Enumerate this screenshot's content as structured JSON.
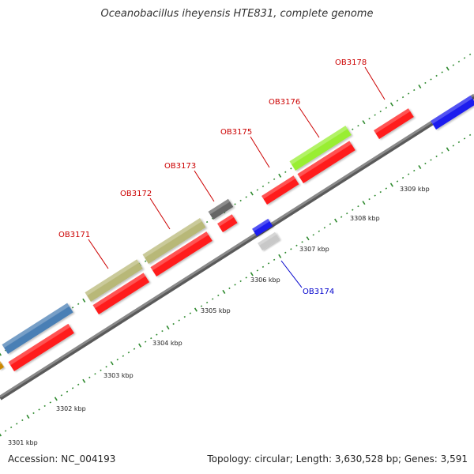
{
  "title": "Oceanobacillus iheyensis HTE831, complete genome",
  "footer": {
    "accession": "Accession: NC_004193",
    "summary": "Topology: circular; Length: 3,630,528 bp; Genes: 3,591"
  },
  "colors": {
    "tick": "#2f8a2f",
    "genome_line": "#8a8a8a",
    "label_forward": "#cc0000",
    "label_reverse": "#0000cc"
  },
  "axis_labels": [
    "3301 kbp",
    "3302 kbp",
    "3303 kbp",
    "3304 kbp",
    "3305 kbp",
    "3306 kbp",
    "3307 kbp",
    "3308 kbp",
    "3309 kbp"
  ],
  "gene_labels": [
    {
      "text": "OB3171",
      "strand": "forward"
    },
    {
      "text": "OB3172",
      "strand": "forward"
    },
    {
      "text": "OB3173",
      "strand": "forward"
    },
    {
      "text": "OB3175",
      "strand": "forward"
    },
    {
      "text": "OB3176",
      "strand": "forward"
    },
    {
      "text": "OB3178",
      "strand": "forward"
    },
    {
      "text": "OB3174",
      "strand": "reverse"
    }
  ],
  "genes": [
    {
      "color": "#ff1a1a",
      "strand": "forward"
    },
    {
      "color": "#ff1a1a",
      "strand": "forward"
    },
    {
      "color": "#ff1a1a",
      "strand": "forward"
    },
    {
      "color": "#ff1a1a",
      "strand": "forward"
    },
    {
      "color": "#ff1a1a",
      "strand": "forward"
    },
    {
      "color": "#ff1a1a",
      "strand": "forward"
    },
    {
      "color": "#ff1a1a",
      "strand": "forward"
    },
    {
      "color": "#4a7fb5",
      "strand": "forward"
    },
    {
      "color": "#b8b878",
      "strand": "forward"
    },
    {
      "color": "#b8b878",
      "strand": "forward"
    },
    {
      "color": "#666666",
      "strand": "forward"
    },
    {
      "color": "#99ee33",
      "strand": "forward"
    },
    {
      "color": "#1a1aee",
      "strand": "forward"
    },
    {
      "color": "#cc8800",
      "strand": "forward"
    },
    {
      "color": "#1a1aee",
      "strand": "reverse"
    },
    {
      "color": "#c8c8c8",
      "strand": "reverse"
    }
  ]
}
